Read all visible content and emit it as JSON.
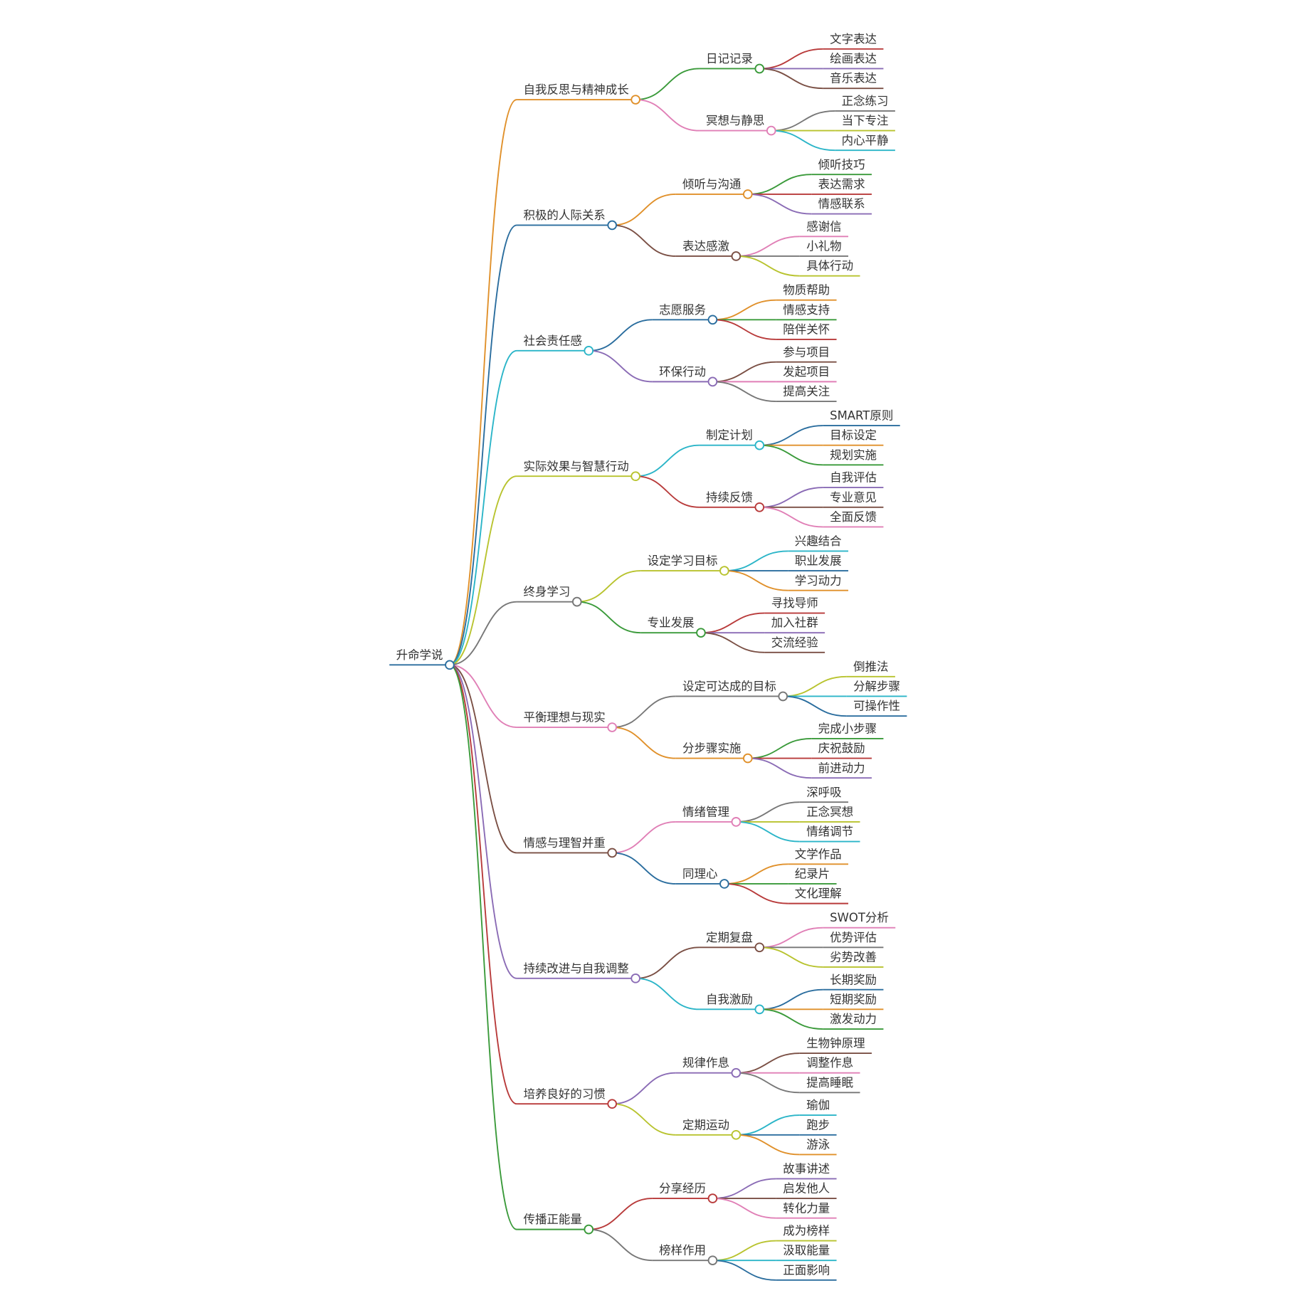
{
  "root": {
    "label": "升命学说",
    "color": "#2a6d9e"
  },
  "branches": [
    {
      "label": "自我反思与精神成长",
      "color": "#e0902a",
      "children": [
        {
          "label": "日记记录",
          "color": "#3a9a3a",
          "leaves": [
            {
              "label": "文字表达",
              "color": "#b83a3a"
            },
            {
              "label": "绘画表达",
              "color": "#8a6bb5"
            },
            {
              "label": "音乐表达",
              "color": "#7a4f44"
            }
          ]
        },
        {
          "label": "冥想与静思",
          "color": "#e07fb6",
          "leaves": [
            {
              "label": "正念练习",
              "color": "#777777"
            },
            {
              "label": "当下专注",
              "color": "#b8c32e"
            },
            {
              "label": "内心平静",
              "color": "#2bb5c8"
            }
          ]
        }
      ]
    },
    {
      "label": "积极的人际关系",
      "color": "#2a6d9e",
      "children": [
        {
          "label": "倾听与沟通",
          "color": "#e0902a",
          "leaves": [
            {
              "label": "倾听技巧",
              "color": "#3a9a3a"
            },
            {
              "label": "表达需求",
              "color": "#b83a3a"
            },
            {
              "label": "情感联系",
              "color": "#8a6bb5"
            }
          ]
        },
        {
          "label": "表达感激",
          "color": "#7a4f44",
          "leaves": [
            {
              "label": "感谢信",
              "color": "#e07fb6"
            },
            {
              "label": "小礼物",
              "color": "#777777"
            },
            {
              "label": "具体行动",
              "color": "#b8c32e"
            }
          ]
        }
      ]
    },
    {
      "label": "社会责任感",
      "color": "#2bb5c8",
      "children": [
        {
          "label": "志愿服务",
          "color": "#2a6d9e",
          "leaves": [
            {
              "label": "物质帮助",
              "color": "#e0902a"
            },
            {
              "label": "情感支持",
              "color": "#3a9a3a"
            },
            {
              "label": "陪伴关怀",
              "color": "#b83a3a"
            }
          ]
        },
        {
          "label": "环保行动",
          "color": "#8a6bb5",
          "leaves": [
            {
              "label": "参与项目",
              "color": "#7a4f44"
            },
            {
              "label": "发起项目",
              "color": "#e07fb6"
            },
            {
              "label": "提高关注",
              "color": "#777777"
            }
          ]
        }
      ]
    },
    {
      "label": "实际效果与智慧行动",
      "color": "#b8c32e",
      "children": [
        {
          "label": "制定计划",
          "color": "#2bb5c8",
          "leaves": [
            {
              "label": "SMART原则",
              "color": "#2a6d9e"
            },
            {
              "label": "目标设定",
              "color": "#e0902a"
            },
            {
              "label": "规划实施",
              "color": "#3a9a3a"
            }
          ]
        },
        {
          "label": "持续反馈",
          "color": "#b83a3a",
          "leaves": [
            {
              "label": "自我评估",
              "color": "#8a6bb5"
            },
            {
              "label": "专业意见",
              "color": "#7a4f44"
            },
            {
              "label": "全面反馈",
              "color": "#e07fb6"
            }
          ]
        }
      ]
    },
    {
      "label": "终身学习",
      "color": "#777777",
      "children": [
        {
          "label": "设定学习目标",
          "color": "#b8c32e",
          "leaves": [
            {
              "label": "兴趣结合",
              "color": "#2bb5c8"
            },
            {
              "label": "职业发展",
              "color": "#2a6d9e"
            },
            {
              "label": "学习动力",
              "color": "#e0902a"
            }
          ]
        },
        {
          "label": "专业发展",
          "color": "#3a9a3a",
          "leaves": [
            {
              "label": "寻找导师",
              "color": "#b83a3a"
            },
            {
              "label": "加入社群",
              "color": "#8a6bb5"
            },
            {
              "label": "交流经验",
              "color": "#7a4f44"
            }
          ]
        }
      ]
    },
    {
      "label": "平衡理想与现实",
      "color": "#e07fb6",
      "children": [
        {
          "label": "设定可达成的目标",
          "color": "#777777",
          "leaves": [
            {
              "label": "倒推法",
              "color": "#b8c32e"
            },
            {
              "label": "分解步骤",
              "color": "#2bb5c8"
            },
            {
              "label": "可操作性",
              "color": "#2a6d9e"
            }
          ]
        },
        {
          "label": "分步骤实施",
          "color": "#e0902a",
          "leaves": [
            {
              "label": "完成小步骤",
              "color": "#3a9a3a"
            },
            {
              "label": "庆祝鼓励",
              "color": "#b83a3a"
            },
            {
              "label": "前进动力",
              "color": "#8a6bb5"
            }
          ]
        }
      ]
    },
    {
      "label": "情感与理智并重",
      "color": "#7a4f44",
      "children": [
        {
          "label": "情绪管理",
          "color": "#e07fb6",
          "leaves": [
            {
              "label": "深呼吸",
              "color": "#777777"
            },
            {
              "label": "正念冥想",
              "color": "#b8c32e"
            },
            {
              "label": "情绪调节",
              "color": "#2bb5c8"
            }
          ]
        },
        {
          "label": "同理心",
          "color": "#2a6d9e",
          "leaves": [
            {
              "label": "文学作品",
              "color": "#e0902a"
            },
            {
              "label": "纪录片",
              "color": "#3a9a3a"
            },
            {
              "label": "文化理解",
              "color": "#b83a3a"
            }
          ]
        }
      ]
    },
    {
      "label": "持续改进与自我调整",
      "color": "#8a6bb5",
      "children": [
        {
          "label": "定期复盘",
          "color": "#7a4f44",
          "leaves": [
            {
              "label": "SWOT分析",
              "color": "#e07fb6"
            },
            {
              "label": "优势评估",
              "color": "#777777"
            },
            {
              "label": "劣势改善",
              "color": "#b8c32e"
            }
          ]
        },
        {
          "label": "自我激励",
          "color": "#2bb5c8",
          "leaves": [
            {
              "label": "长期奖励",
              "color": "#2a6d9e"
            },
            {
              "label": "短期奖励",
              "color": "#e0902a"
            },
            {
              "label": "激发动力",
              "color": "#3a9a3a"
            }
          ]
        }
      ]
    },
    {
      "label": "培养良好的习惯",
      "color": "#b83a3a",
      "children": [
        {
          "label": "规律作息",
          "color": "#8a6bb5",
          "leaves": [
            {
              "label": "生物钟原理",
              "color": "#7a4f44"
            },
            {
              "label": "调整作息",
              "color": "#e07fb6"
            },
            {
              "label": "提高睡眠",
              "color": "#777777"
            }
          ]
        },
        {
          "label": "定期运动",
          "color": "#b8c32e",
          "leaves": [
            {
              "label": "瑜伽",
              "color": "#2bb5c8"
            },
            {
              "label": "跑步",
              "color": "#2a6d9e"
            },
            {
              "label": "游泳",
              "color": "#e0902a"
            }
          ]
        }
      ]
    },
    {
      "label": "传播正能量",
      "color": "#3a9a3a",
      "children": [
        {
          "label": "分享经历",
          "color": "#b83a3a",
          "leaves": [
            {
              "label": "故事讲述",
              "color": "#8a6bb5"
            },
            {
              "label": "启发他人",
              "color": "#7a4f44"
            },
            {
              "label": "转化力量",
              "color": "#e07fb6"
            }
          ]
        },
        {
          "label": "榜样作用",
          "color": "#777777",
          "leaves": [
            {
              "label": "成为榜样",
              "color": "#b8c32e"
            },
            {
              "label": "汲取能量",
              "color": "#2bb5c8"
            },
            {
              "label": "正面影响",
              "color": "#2a6d9e"
            }
          ]
        }
      ]
    }
  ]
}
